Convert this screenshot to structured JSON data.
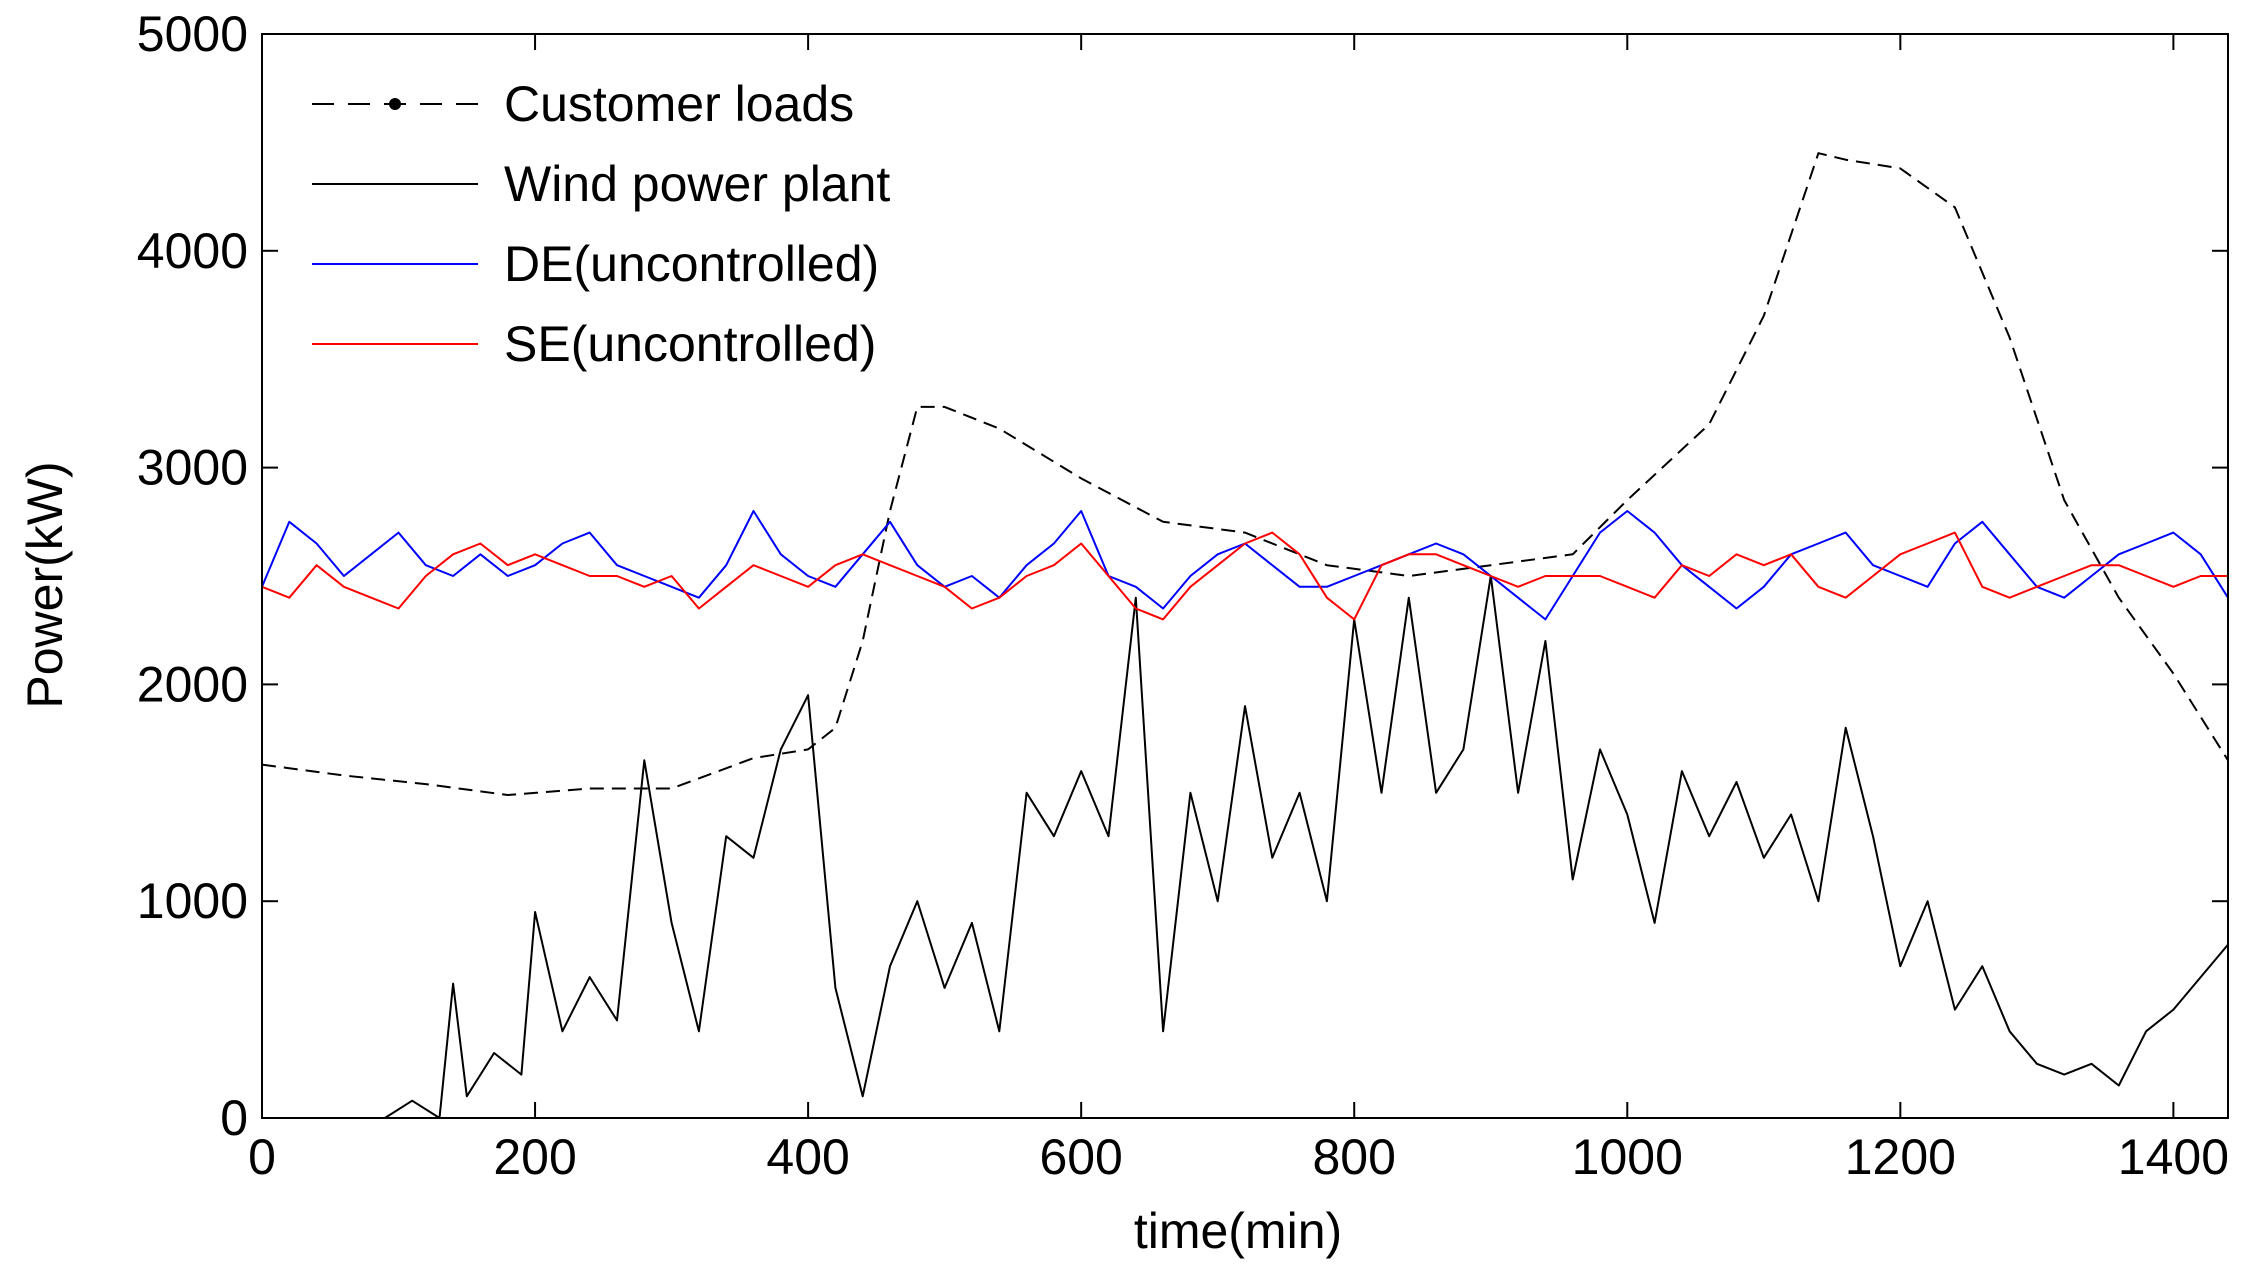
{
  "chart_data": {
    "type": "line",
    "title": "",
    "xlabel": "time(min)",
    "ylabel": "Power(kW)",
    "xlim": [
      0,
      1440
    ],
    "ylim": [
      0,
      5000
    ],
    "xticks": [
      0,
      200,
      400,
      600,
      800,
      1000,
      1200,
      1400
    ],
    "yticks": [
      0,
      1000,
      2000,
      3000,
      4000,
      5000
    ],
    "grid": false,
    "legend_position": "top-left",
    "series": [
      {
        "name": "Customer loads",
        "color": "#000000",
        "style": "dashed-dot",
        "x": [
          0,
          60,
          120,
          180,
          240,
          300,
          360,
          400,
          420,
          440,
          460,
          480,
          500,
          540,
          600,
          660,
          720,
          780,
          840,
          900,
          960,
          1000,
          1060,
          1100,
          1140,
          1160,
          1200,
          1240,
          1280,
          1320,
          1360,
          1400,
          1440
        ],
        "values": [
          1630,
          1580,
          1540,
          1490,
          1520,
          1520,
          1660,
          1700,
          1800,
          2200,
          2800,
          3280,
          3280,
          3180,
          2950,
          2750,
          2700,
          2550,
          2500,
          2550,
          2600,
          2850,
          3200,
          3700,
          4450,
          4420,
          4380,
          4200,
          3600,
          2850,
          2400,
          2050,
          1650
        ]
      },
      {
        "name": "Wind power plant",
        "color": "#000000",
        "style": "solid",
        "x": [
          0,
          90,
          110,
          130,
          140,
          150,
          170,
          190,
          200,
          220,
          240,
          260,
          280,
          300,
          320,
          340,
          360,
          380,
          400,
          420,
          440,
          460,
          480,
          500,
          520,
          540,
          560,
          580,
          600,
          620,
          640,
          660,
          680,
          700,
          720,
          740,
          760,
          780,
          800,
          820,
          840,
          860,
          880,
          900,
          920,
          940,
          960,
          980,
          1000,
          1020,
          1040,
          1060,
          1080,
          1100,
          1120,
          1140,
          1160,
          1180,
          1200,
          1220,
          1240,
          1260,
          1280,
          1300,
          1320,
          1340,
          1360,
          1380,
          1400,
          1420,
          1440
        ],
        "values": [
          0,
          0,
          80,
          0,
          620,
          100,
          300,
          200,
          950,
          400,
          650,
          450,
          1650,
          900,
          400,
          1300,
          1200,
          1700,
          1950,
          600,
          100,
          700,
          1000,
          600,
          900,
          400,
          1500,
          1300,
          1600,
          1300,
          2400,
          400,
          1500,
          1000,
          1900,
          1200,
          1500,
          1000,
          2300,
          1500,
          2400,
          1500,
          1700,
          2500,
          1500,
          2200,
          1100,
          1700,
          1400,
          900,
          1600,
          1300,
          1550,
          1200,
          1400,
          1000,
          1800,
          1300,
          700,
          1000,
          500,
          700,
          400,
          250,
          200,
          250,
          150,
          400,
          500,
          650,
          800
        ]
      },
      {
        "name": "DE(uncontrolled)",
        "color": "#0000ff",
        "style": "solid",
        "x": [
          0,
          20,
          40,
          60,
          80,
          100,
          120,
          140,
          160,
          180,
          200,
          220,
          240,
          260,
          280,
          300,
          320,
          340,
          360,
          380,
          400,
          420,
          440,
          460,
          480,
          500,
          520,
          540,
          560,
          580,
          600,
          620,
          640,
          660,
          680,
          700,
          720,
          740,
          760,
          780,
          800,
          820,
          840,
          860,
          880,
          900,
          920,
          940,
          960,
          980,
          1000,
          1020,
          1040,
          1060,
          1080,
          1100,
          1120,
          1140,
          1160,
          1180,
          1200,
          1220,
          1240,
          1260,
          1280,
          1300,
          1320,
          1340,
          1360,
          1380,
          1400,
          1420,
          1440
        ],
        "values": [
          2450,
          2750,
          2650,
          2500,
          2600,
          2700,
          2550,
          2500,
          2600,
          2500,
          2550,
          2650,
          2700,
          2550,
          2500,
          2450,
          2400,
          2550,
          2800,
          2600,
          2500,
          2450,
          2600,
          2750,
          2550,
          2450,
          2500,
          2400,
          2550,
          2650,
          2800,
          2500,
          2450,
          2350,
          2500,
          2600,
          2650,
          2550,
          2450,
          2450,
          2500,
          2550,
          2600,
          2650,
          2600,
          2500,
          2400,
          2300,
          2500,
          2700,
          2800,
          2700,
          2550,
          2450,
          2350,
          2450,
          2600,
          2650,
          2700,
          2550,
          2500,
          2450,
          2650,
          2750,
          2600,
          2450,
          2400,
          2500,
          2600,
          2650,
          2700,
          2600,
          2400
        ]
      },
      {
        "name": "SE(uncontrolled)",
        "color": "#ff0000",
        "style": "solid",
        "x": [
          0,
          20,
          40,
          60,
          80,
          100,
          120,
          140,
          160,
          180,
          200,
          220,
          240,
          260,
          280,
          300,
          320,
          340,
          360,
          380,
          400,
          420,
          440,
          460,
          480,
          500,
          520,
          540,
          560,
          580,
          600,
          620,
          640,
          660,
          680,
          700,
          720,
          740,
          760,
          780,
          800,
          820,
          840,
          860,
          880,
          900,
          920,
          940,
          960,
          980,
          1000,
          1020,
          1040,
          1060,
          1080,
          1100,
          1120,
          1140,
          1160,
          1180,
          1200,
          1220,
          1240,
          1260,
          1280,
          1300,
          1320,
          1340,
          1360,
          1380,
          1400,
          1420,
          1440
        ],
        "values": [
          2450,
          2400,
          2550,
          2450,
          2400,
          2350,
          2500,
          2600,
          2650,
          2550,
          2600,
          2550,
          2500,
          2500,
          2450,
          2500,
          2350,
          2450,
          2550,
          2500,
          2450,
          2550,
          2600,
          2550,
          2500,
          2450,
          2350,
          2400,
          2500,
          2550,
          2650,
          2500,
          2350,
          2300,
          2450,
          2550,
          2650,
          2700,
          2600,
          2400,
          2300,
          2550,
          2600,
          2600,
          2550,
          2500,
          2450,
          2500,
          2500,
          2500,
          2450,
          2400,
          2550,
          2500,
          2600,
          2550,
          2600,
          2450,
          2400,
          2500,
          2600,
          2650,
          2700,
          2450,
          2400,
          2450,
          2500,
          2550,
          2550,
          2500,
          2450,
          2500,
          2500
        ]
      }
    ]
  }
}
